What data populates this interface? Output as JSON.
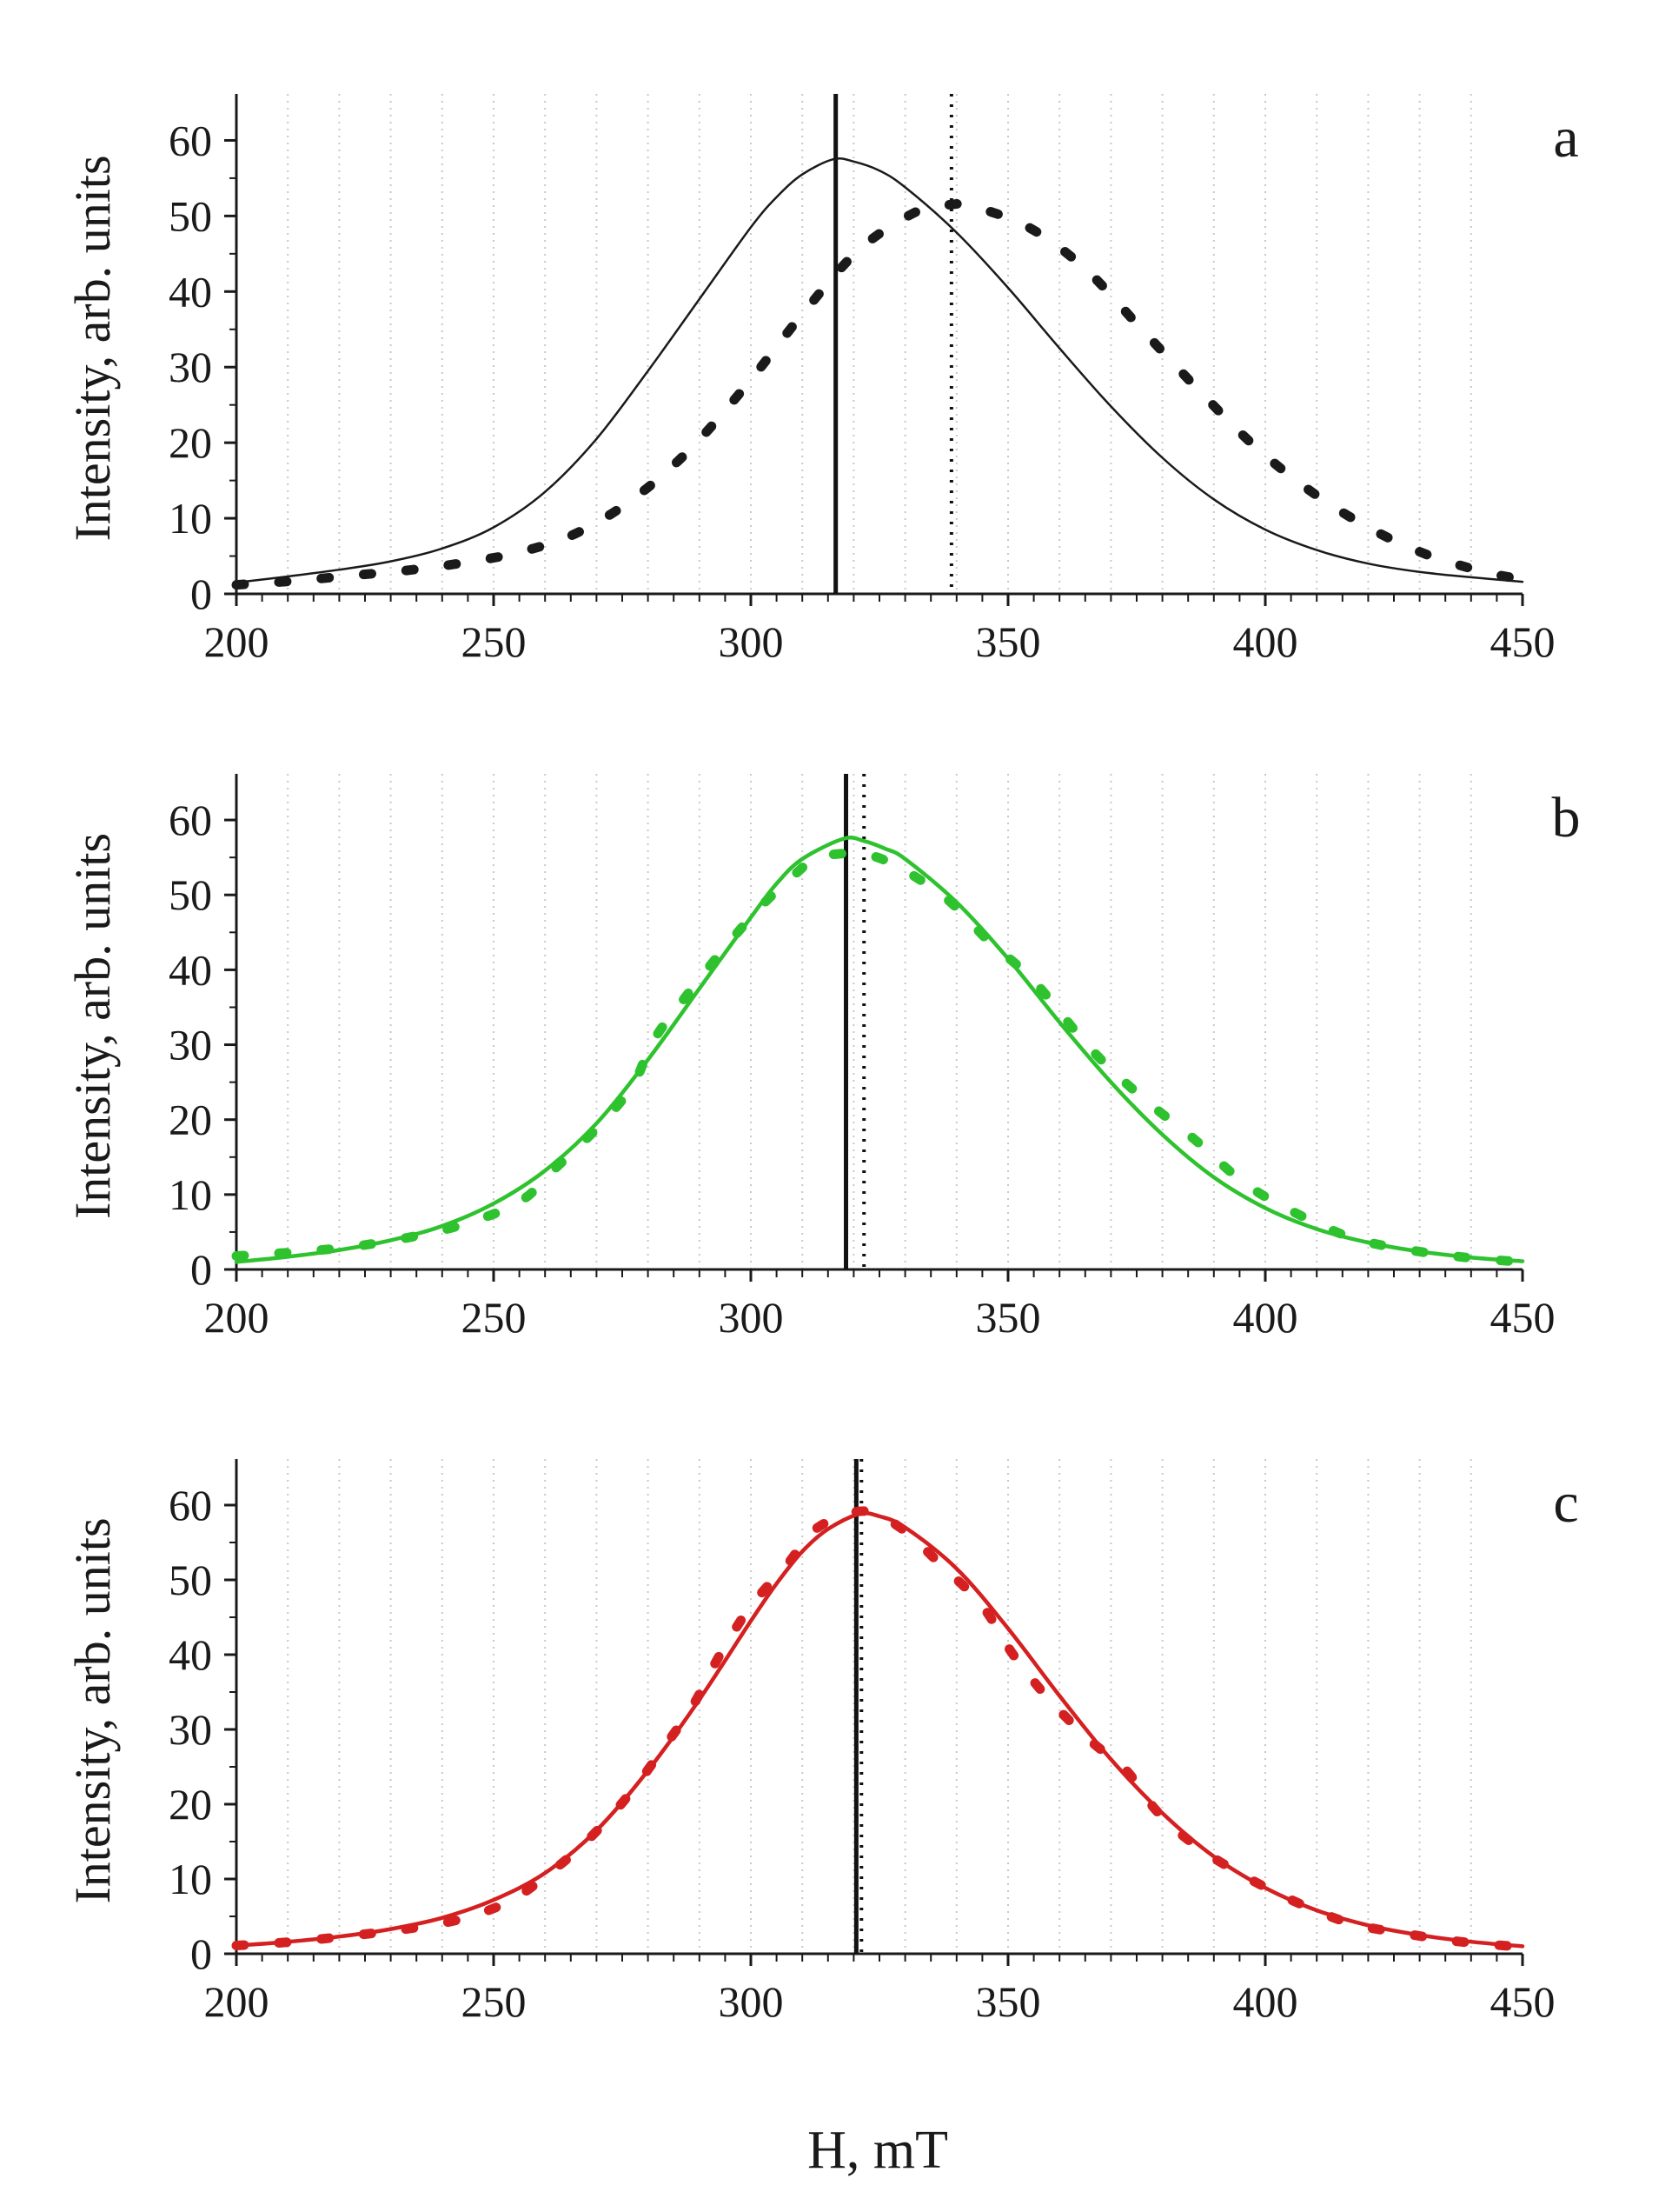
{
  "chart_data": [
    {
      "type": "line",
      "panel_label": "a",
      "xlabel": "H, mT",
      "ylabel": "Intensity, arb. units",
      "xlim": [
        200,
        450
      ],
      "ylim": [
        0,
        65
      ],
      "xticks": [
        200,
        250,
        300,
        350,
        400,
        450
      ],
      "yticks": [
        0,
        10,
        20,
        30,
        40,
        50,
        60
      ],
      "x_minor_step": 5,
      "grid": "vertical dotted every 10 mT",
      "series": [
        {
          "name": "solid curve",
          "style": "solid",
          "color": "#1a1a1a",
          "x": [
            200,
            210,
            220,
            230,
            240,
            250,
            260,
            270,
            280,
            290,
            300,
            305,
            310,
            316,
            320,
            325,
            330,
            340,
            350,
            360,
            370,
            380,
            390,
            400,
            410,
            420,
            430,
            440,
            450
          ],
          "values": [
            1.5,
            2.3,
            3.2,
            4.3,
            6.0,
            8.8,
            13.5,
            20.5,
            29.5,
            39.0,
            48.5,
            52.5,
            55.5,
            57.5,
            57.2,
            56.0,
            53.8,
            47.8,
            40.5,
            32.5,
            24.8,
            18.0,
            12.5,
            8.5,
            5.8,
            4.0,
            2.9,
            2.2,
            1.6
          ]
        },
        {
          "name": "dotted curve",
          "style": "dotted",
          "color": "#1a1a1a",
          "x": [
            200,
            211,
            222,
            233,
            244,
            255,
            266,
            277,
            288,
            299,
            310,
            321,
            332,
            339,
            343,
            354,
            365,
            376,
            387,
            398,
            409,
            420,
            431,
            442,
            450
          ],
          "values": [
            1.2,
            1.7,
            2.4,
            3.1,
            4.1,
            5.5,
            8.0,
            12.5,
            19.0,
            27.5,
            37.0,
            45.5,
            50.5,
            51.5,
            51.3,
            48.5,
            43.0,
            35.0,
            27.0,
            19.5,
            13.5,
            8.8,
            5.3,
            3.0,
            1.9
          ]
        }
      ],
      "vlines": [
        {
          "x": 316.5,
          "style": "solid"
        },
        {
          "x": 339,
          "style": "dotted"
        }
      ]
    },
    {
      "type": "line",
      "panel_label": "b",
      "xlabel": "H, mT",
      "ylabel": "Intensity, arb. units",
      "xlim": [
        200,
        450
      ],
      "ylim": [
        0,
        65
      ],
      "xticks": [
        200,
        250,
        300,
        350,
        400,
        450
      ],
      "yticks": [
        0,
        10,
        20,
        30,
        40,
        50,
        60
      ],
      "x_minor_step": 5,
      "grid": "vertical dotted every 10 mT",
      "series": [
        {
          "name": "solid curve",
          "style": "solid",
          "color": "#2ec22e",
          "x": [
            200,
            210,
            220,
            230,
            240,
            250,
            260,
            270,
            280,
            290,
            300,
            305,
            310,
            318,
            322,
            326,
            330,
            340,
            350,
            360,
            370,
            380,
            390,
            400,
            410,
            420,
            430,
            440,
            450
          ],
          "values": [
            1.0,
            1.7,
            2.6,
            3.9,
            5.8,
            8.8,
            13.2,
            19.5,
            28.0,
            37.5,
            47.0,
            51.5,
            54.8,
            57.5,
            57.2,
            56.2,
            54.8,
            49.0,
            41.5,
            33.0,
            25.0,
            18.0,
            12.3,
            8.2,
            5.4,
            3.6,
            2.4,
            1.6,
            1.1
          ]
        },
        {
          "name": "dotted curve",
          "style": "dotted",
          "color": "#2ec22e",
          "x": [
            200,
            211,
            222,
            233,
            244,
            255,
            262,
            270,
            277,
            281,
            288,
            295,
            302,
            309,
            313,
            321,
            328,
            338,
            346,
            355,
            366,
            376,
            386,
            396,
            406,
            417,
            428,
            439,
            450
          ],
          "values": [
            1.8,
            2.3,
            3.0,
            4.2,
            6.0,
            9.0,
            13.5,
            18.8,
            24.5,
            30.5,
            37.0,
            43.0,
            48.5,
            53.0,
            55.0,
            55.5,
            54.0,
            49.5,
            44.0,
            38.5,
            29.5,
            23.0,
            17.5,
            11.5,
            7.5,
            4.2,
            2.6,
            1.6,
            1.0
          ]
        }
      ],
      "vlines": [
        {
          "x": 318.5,
          "style": "solid"
        },
        {
          "x": 322,
          "style": "dotted"
        }
      ]
    },
    {
      "type": "line",
      "panel_label": "c",
      "xlabel": "H, mT",
      "ylabel": "Intensity, arb. units",
      "xlim": [
        200,
        450
      ],
      "ylim": [
        0,
        65
      ],
      "xticks": [
        200,
        250,
        300,
        350,
        400,
        450
      ],
      "yticks": [
        0,
        10,
        20,
        30,
        40,
        50,
        60
      ],
      "x_minor_step": 5,
      "grid": "vertical dotted every 10 mT",
      "series": [
        {
          "name": "solid curve",
          "style": "solid",
          "color": "#d42020",
          "x": [
            200,
            210,
            220,
            230,
            240,
            250,
            260,
            270,
            280,
            290,
            300,
            305,
            310,
            315,
            321,
            325,
            330,
            340,
            350,
            360,
            370,
            380,
            390,
            400,
            410,
            420,
            430,
            440,
            450
          ],
          "values": [
            1.1,
            1.6,
            2.3,
            3.3,
            4.8,
            7.2,
            10.8,
            16.5,
            24.5,
            34.0,
            44.5,
            49.5,
            53.8,
            56.8,
            58.8,
            58.5,
            57.0,
            51.5,
            43.5,
            34.5,
            26.0,
            18.8,
            13.0,
            8.8,
            5.8,
            3.8,
            2.5,
            1.6,
            1.0
          ]
        },
        {
          "name": "dotted curve",
          "style": "dotted",
          "color": "#d42020",
          "x": [
            200,
            211,
            222,
            233,
            244,
            253,
            260,
            268,
            276,
            283,
            289,
            294,
            300,
            307,
            313,
            322,
            329,
            337,
            345,
            351,
            358,
            366,
            373,
            379,
            387,
            397,
            407,
            417,
            428,
            438,
            450
          ],
          "values": [
            1.1,
            1.6,
            2.4,
            3.3,
            4.7,
            7.0,
            10.3,
            15.0,
            21.0,
            27.5,
            33.5,
            40.0,
            46.5,
            52.0,
            57.0,
            59.2,
            57.0,
            52.0,
            46.5,
            40.0,
            34.0,
            28.5,
            24.5,
            19.0,
            14.2,
            10.0,
            6.6,
            4.0,
            2.6,
            1.6,
            0.9
          ]
        }
      ],
      "vlines": [
        {
          "x": 320.5,
          "style": "solid"
        },
        {
          "x": 321.5,
          "style": "dotted"
        }
      ]
    }
  ],
  "figure": {
    "shared_xlabel": "H, mT"
  }
}
